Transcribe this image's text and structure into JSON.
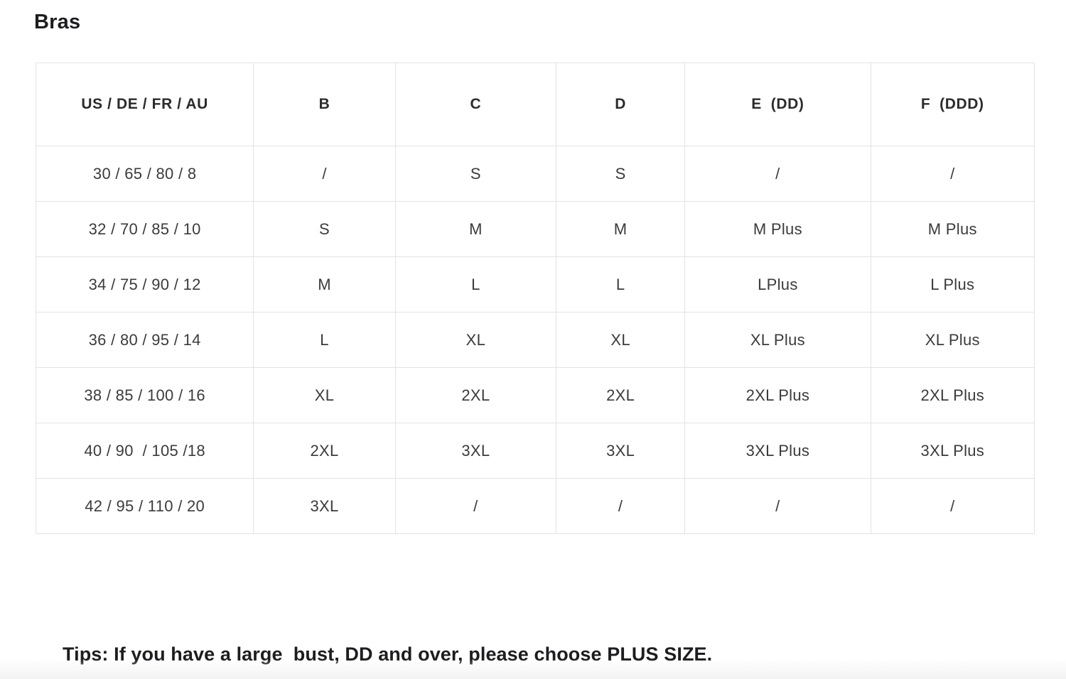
{
  "page": {
    "title": "Bras",
    "tips": "Tips: If you have a large  bust, DD and over, please choose PLUS SIZE."
  },
  "table": {
    "columns": [
      "US / DE / FR / AU",
      "B",
      "C",
      "D",
      "E  (DD)",
      "F  (DDD)"
    ],
    "rows": [
      [
        "30 / 65 / 80 / 8",
        "/",
        "S",
        "S",
        "/",
        "/"
      ],
      [
        "32 / 70 / 85 / 10",
        "S",
        "M",
        "M",
        "M Plus",
        "M Plus"
      ],
      [
        "34 / 75 / 90 / 12",
        "M",
        "L",
        "L",
        "LPlus",
        "L Plus"
      ],
      [
        "36 / 80 / 95 / 14",
        "L",
        "XL",
        "XL",
        "XL Plus",
        "XL Plus"
      ],
      [
        "38 / 85 / 100 / 16",
        "XL",
        "2XL",
        "2XL",
        "2XL Plus",
        "2XL Plus"
      ],
      [
        "40 / 90  / 105 /18",
        "2XL",
        "3XL",
        "3XL",
        "3XL Plus",
        "3XL Plus"
      ],
      [
        "42 / 95 / 110 / 20",
        "3XL",
        "/",
        "/",
        "/",
        "/"
      ]
    ]
  },
  "colors": {
    "background": "#ffffff",
    "border": "#e3e3e3",
    "heading_text": "#1d1d1f",
    "header_cell_text": "#2b2b2b",
    "body_cell_text": "#3b3b3b",
    "bottom_fade": "#f3f3f4"
  }
}
